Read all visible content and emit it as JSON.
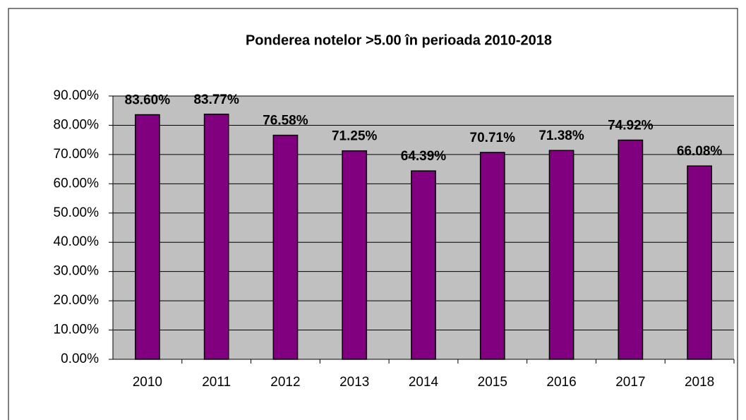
{
  "chart_data": {
    "type": "bar",
    "title": "Ponderea notelor >5.00 în perioada 2010-2018",
    "categories": [
      "2010",
      "2011",
      "2012",
      "2013",
      "2014",
      "2015",
      "2016",
      "2017",
      "2018"
    ],
    "values": [
      83.6,
      83.77,
      76.58,
      71.25,
      64.39,
      70.71,
      71.38,
      74.92,
      66.08
    ],
    "value_labels": [
      "83.60%",
      "83.77%",
      "76.58%",
      "71.25%",
      "64.39%",
      "70.71%",
      "71.38%",
      "74.92%",
      "66.08%"
    ],
    "color": "#800080",
    "ylim": [
      0,
      90
    ],
    "yticks": [
      {
        "value": 0,
        "label": "0.00%"
      },
      {
        "value": 10,
        "label": "10.00%"
      },
      {
        "value": 20,
        "label": "20.00%"
      },
      {
        "value": 30,
        "label": "30.00%"
      },
      {
        "value": 40,
        "label": "40.00%"
      },
      {
        "value": 50,
        "label": "50.00%"
      },
      {
        "value": 60,
        "label": "60.00%"
      },
      {
        "value": 70,
        "label": "70.00%"
      },
      {
        "value": 80,
        "label": "80.00%"
      },
      {
        "value": 90,
        "label": "90.00%"
      }
    ],
    "grid": true
  }
}
